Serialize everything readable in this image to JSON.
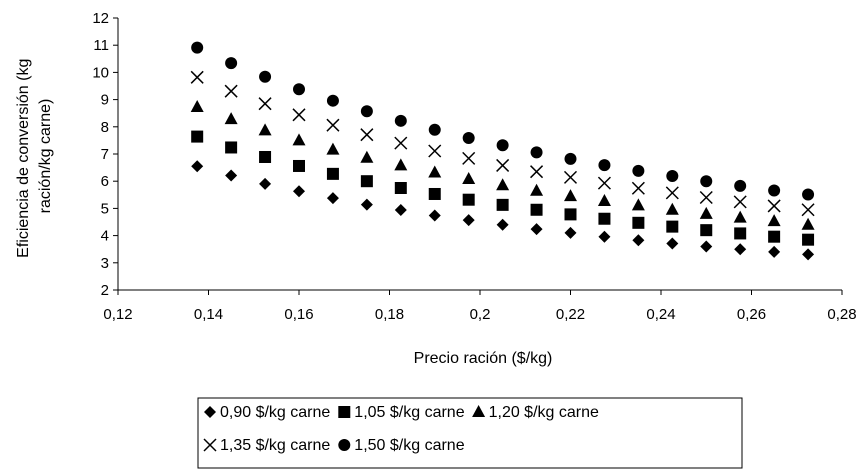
{
  "chart_data": {
    "type": "scatter",
    "title": "",
    "xlabel": "Precio ración ($/kg)",
    "ylabel_lines": [
      "Eficiencia de conversión (kg",
      "ración/kg carne)"
    ],
    "xlim": [
      0.12,
      0.28
    ],
    "ylim": [
      2,
      12
    ],
    "xticks": [
      0.12,
      0.14,
      0.16,
      0.18,
      0.2,
      0.22,
      0.24,
      0.26,
      0.28
    ],
    "xtick_labels": [
      "0,12",
      "0,14",
      "0,16",
      "0,18",
      "0,2",
      "0,22",
      "0,24",
      "0,26",
      "0,28"
    ],
    "yticks": [
      2,
      3,
      4,
      5,
      6,
      7,
      8,
      9,
      10,
      11,
      12
    ],
    "ytick_labels": [
      "2",
      "3",
      "4",
      "5",
      "6",
      "7",
      "8",
      "9",
      "10",
      "11",
      "12"
    ],
    "grid": false,
    "legend_position": "bottom",
    "x": [
      0.1375,
      0.145,
      0.1525,
      0.16,
      0.1675,
      0.175,
      0.1825,
      0.19,
      0.1975,
      0.205,
      0.2125,
      0.22,
      0.2275,
      0.235,
      0.2425,
      0.25,
      0.2575,
      0.265,
      0.2725
    ],
    "series": [
      {
        "name": "0,90 $/kg carne",
        "marker": "diamond",
        "values": [
          6.55,
          6.21,
          5.9,
          5.63,
          5.38,
          5.14,
          4.94,
          4.74,
          4.57,
          4.4,
          4.24,
          4.1,
          3.96,
          3.83,
          3.71,
          3.6,
          3.5,
          3.4,
          3.31
        ]
      },
      {
        "name": "1,05 $/kg carne",
        "marker": "square",
        "values": [
          7.64,
          7.24,
          6.89,
          6.56,
          6.27,
          6.0,
          5.75,
          5.53,
          5.32,
          5.13,
          4.95,
          4.78,
          4.62,
          4.47,
          4.33,
          4.2,
          4.08,
          3.96,
          3.85
        ]
      },
      {
        "name": "1,20 $/kg carne",
        "marker": "triangle",
        "values": [
          8.73,
          8.28,
          7.87,
          7.5,
          7.16,
          6.86,
          6.58,
          6.32,
          6.08,
          5.85,
          5.65,
          5.45,
          5.27,
          5.11,
          4.95,
          4.8,
          4.66,
          4.53,
          4.4
        ]
      },
      {
        "name": "1,35 $/kg carne",
        "marker": "x",
        "values": [
          9.82,
          9.31,
          8.85,
          8.44,
          8.06,
          7.71,
          7.4,
          7.11,
          6.84,
          6.58,
          6.35,
          6.14,
          5.93,
          5.74,
          5.57,
          5.4,
          5.24,
          5.09,
          4.95
        ]
      },
      {
        "name": "1,50 $/kg carne",
        "marker": "circle",
        "values": [
          10.91,
          10.34,
          9.84,
          9.38,
          8.96,
          8.57,
          8.22,
          7.89,
          7.59,
          7.32,
          7.06,
          6.82,
          6.59,
          6.38,
          6.19,
          6.0,
          5.83,
          5.66,
          5.51
        ]
      }
    ]
  }
}
